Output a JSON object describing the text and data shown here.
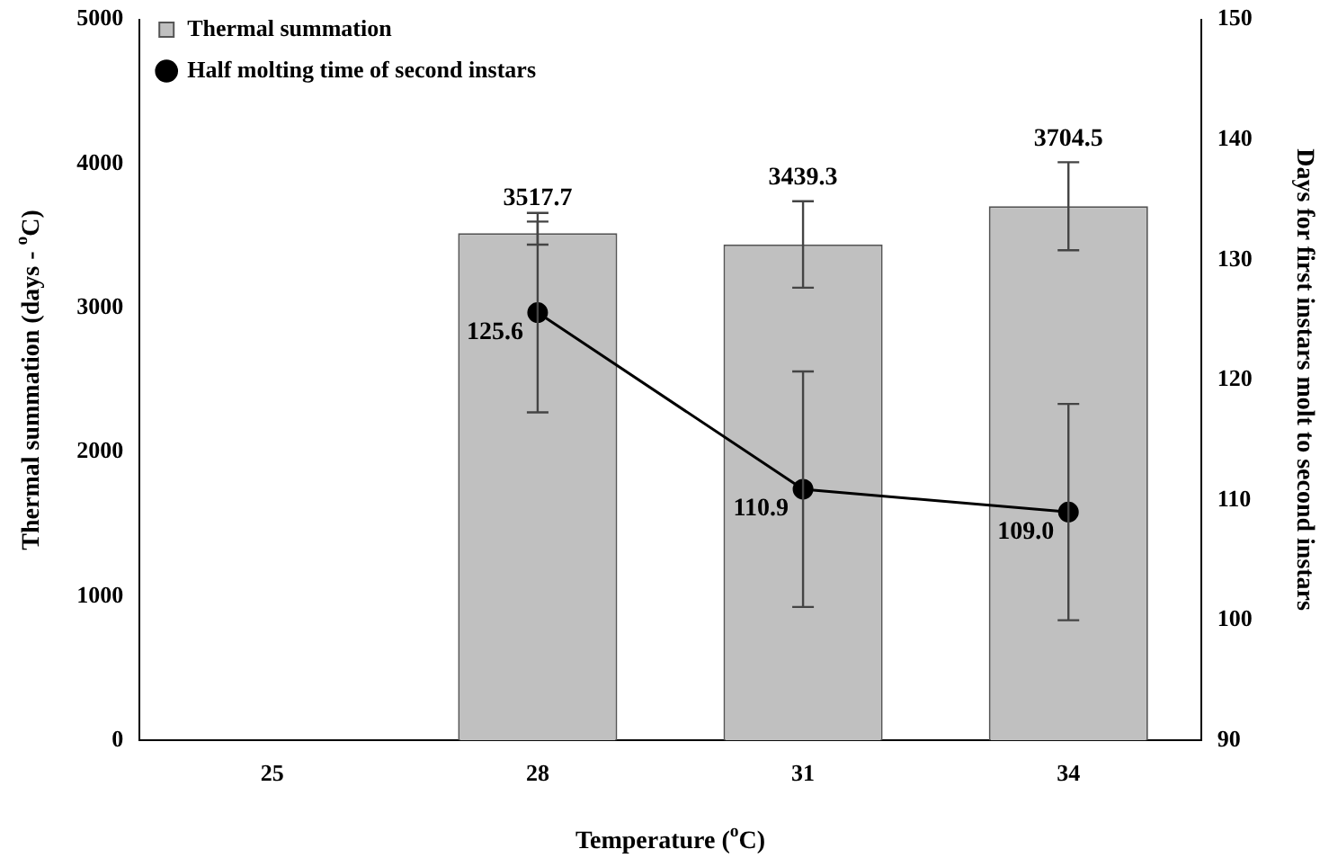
{
  "chart_data": {
    "type": "bar",
    "xlabel": "Temperature ($^{o}$C)",
    "ylabel": "Thermal summation (days - $^{o}$C)",
    "y2label": "Days for first instars molt to second instars",
    "categories": [
      "25",
      "28",
      "31",
      "34"
    ],
    "series": [
      {
        "name": "Thermal summation",
        "color": "#c0c0c0",
        "values": [
          null,
          3517.7,
          3439.3,
          3704.5
        ],
        "errors": [
          null,
          80,
          300,
          305
        ],
        "value_labels": [
          null,
          "3517.7",
          "3439.3",
          "3704.5"
        ]
      },
      {
        "name": "Half molting time of second instars",
        "type": "line",
        "axis": "y2",
        "color": "#000000",
        "values": [
          null,
          125.6,
          110.9,
          109.0
        ],
        "errors": [
          null,
          8.3,
          9.8,
          9.0
        ],
        "value_labels": [
          null,
          "125.6",
          "110.9",
          "109.0"
        ]
      }
    ],
    "ylim": [
      0,
      5000
    ],
    "yticks": [
      0,
      1000,
      2000,
      3000,
      4000,
      5000
    ],
    "y2lim": [
      90,
      150
    ],
    "y2ticks": [
      90,
      100,
      110,
      120,
      130,
      140,
      150
    ],
    "legend": "top left",
    "marker": "circle",
    "line_style": "solid",
    "grid": false
  }
}
